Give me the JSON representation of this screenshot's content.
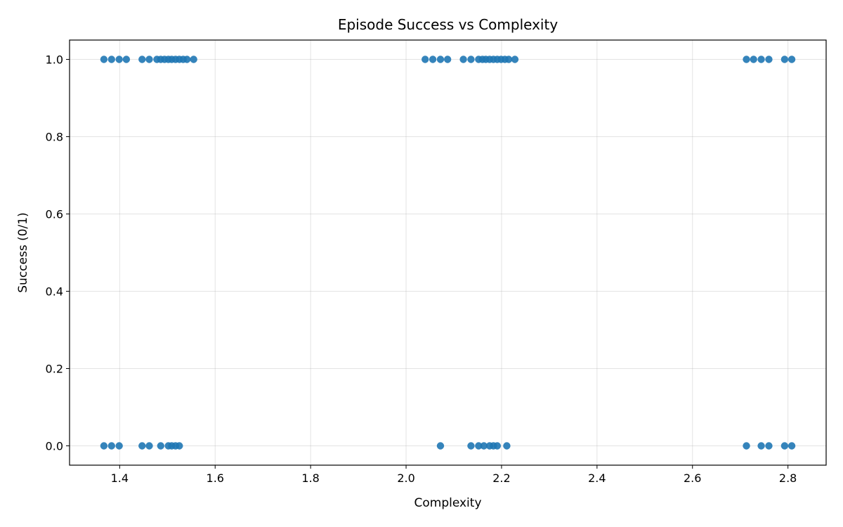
{
  "chart_data": {
    "type": "scatter",
    "title": "Episode Success vs Complexity",
    "xlabel": "Complexity",
    "ylabel": "Success (0/1)",
    "xlim": [
      1.295,
      2.88
    ],
    "ylim": [
      -0.05,
      1.05
    ],
    "xticks": [
      1.4,
      1.6,
      1.8,
      2.0,
      2.2,
      2.4,
      2.6,
      2.8
    ],
    "xtick_labels": [
      "1.4",
      "1.6",
      "1.8",
      "2.0",
      "2.2",
      "2.4",
      "2.6",
      "2.8"
    ],
    "yticks": [
      0.0,
      0.2,
      0.4,
      0.6,
      0.8,
      1.0
    ],
    "ytick_labels": [
      "0.0",
      "0.2",
      "0.4",
      "0.6",
      "0.8",
      "1.0"
    ],
    "grid": true,
    "marker_color": "#1f77b4",
    "series": [
      {
        "points": [
          {
            "x": 1.367,
            "y": 1
          },
          {
            "x": 1.383,
            "y": 1
          },
          {
            "x": 1.399,
            "y": 1
          },
          {
            "x": 1.414,
            "y": 1
          },
          {
            "x": 1.447,
            "y": 1
          },
          {
            "x": 1.462,
            "y": 1
          },
          {
            "x": 1.478,
            "y": 1
          },
          {
            "x": 1.486,
            "y": 1
          },
          {
            "x": 1.494,
            "y": 1
          },
          {
            "x": 1.502,
            "y": 1
          },
          {
            "x": 1.509,
            "y": 1
          },
          {
            "x": 1.517,
            "y": 1
          },
          {
            "x": 1.525,
            "y": 1
          },
          {
            "x": 1.533,
            "y": 1
          },
          {
            "x": 1.541,
            "y": 1
          },
          {
            "x": 1.555,
            "y": 1
          },
          {
            "x": 1.367,
            "y": 0
          },
          {
            "x": 1.383,
            "y": 0
          },
          {
            "x": 1.399,
            "y": 0
          },
          {
            "x": 1.447,
            "y": 0
          },
          {
            "x": 1.462,
            "y": 0
          },
          {
            "x": 1.486,
            "y": 0
          },
          {
            "x": 1.502,
            "y": 0
          },
          {
            "x": 1.509,
            "y": 0
          },
          {
            "x": 1.517,
            "y": 0
          },
          {
            "x": 1.525,
            "y": 0
          },
          {
            "x": 2.04,
            "y": 1
          },
          {
            "x": 2.056,
            "y": 1
          },
          {
            "x": 2.072,
            "y": 1
          },
          {
            "x": 2.087,
            "y": 1
          },
          {
            "x": 2.12,
            "y": 1
          },
          {
            "x": 2.136,
            "y": 1
          },
          {
            "x": 2.152,
            "y": 1
          },
          {
            "x": 2.16,
            "y": 1
          },
          {
            "x": 2.167,
            "y": 1
          },
          {
            "x": 2.175,
            "y": 1
          },
          {
            "x": 2.183,
            "y": 1
          },
          {
            "x": 2.191,
            "y": 1
          },
          {
            "x": 2.199,
            "y": 1
          },
          {
            "x": 2.207,
            "y": 1
          },
          {
            "x": 2.215,
            "y": 1
          },
          {
            "x": 2.228,
            "y": 1
          },
          {
            "x": 2.072,
            "y": 0
          },
          {
            "x": 2.136,
            "y": 0
          },
          {
            "x": 2.152,
            "y": 0
          },
          {
            "x": 2.163,
            "y": 0
          },
          {
            "x": 2.175,
            "y": 0
          },
          {
            "x": 2.183,
            "y": 0
          },
          {
            "x": 2.191,
            "y": 0
          },
          {
            "x": 2.211,
            "y": 0
          },
          {
            "x": 2.713,
            "y": 1
          },
          {
            "x": 2.728,
            "y": 1
          },
          {
            "x": 2.744,
            "y": 1
          },
          {
            "x": 2.76,
            "y": 1
          },
          {
            "x": 2.793,
            "y": 1
          },
          {
            "x": 2.808,
            "y": 1
          },
          {
            "x": 2.713,
            "y": 0
          },
          {
            "x": 2.744,
            "y": 0
          },
          {
            "x": 2.76,
            "y": 0
          },
          {
            "x": 2.793,
            "y": 0
          },
          {
            "x": 2.808,
            "y": 0
          }
        ]
      }
    ]
  }
}
